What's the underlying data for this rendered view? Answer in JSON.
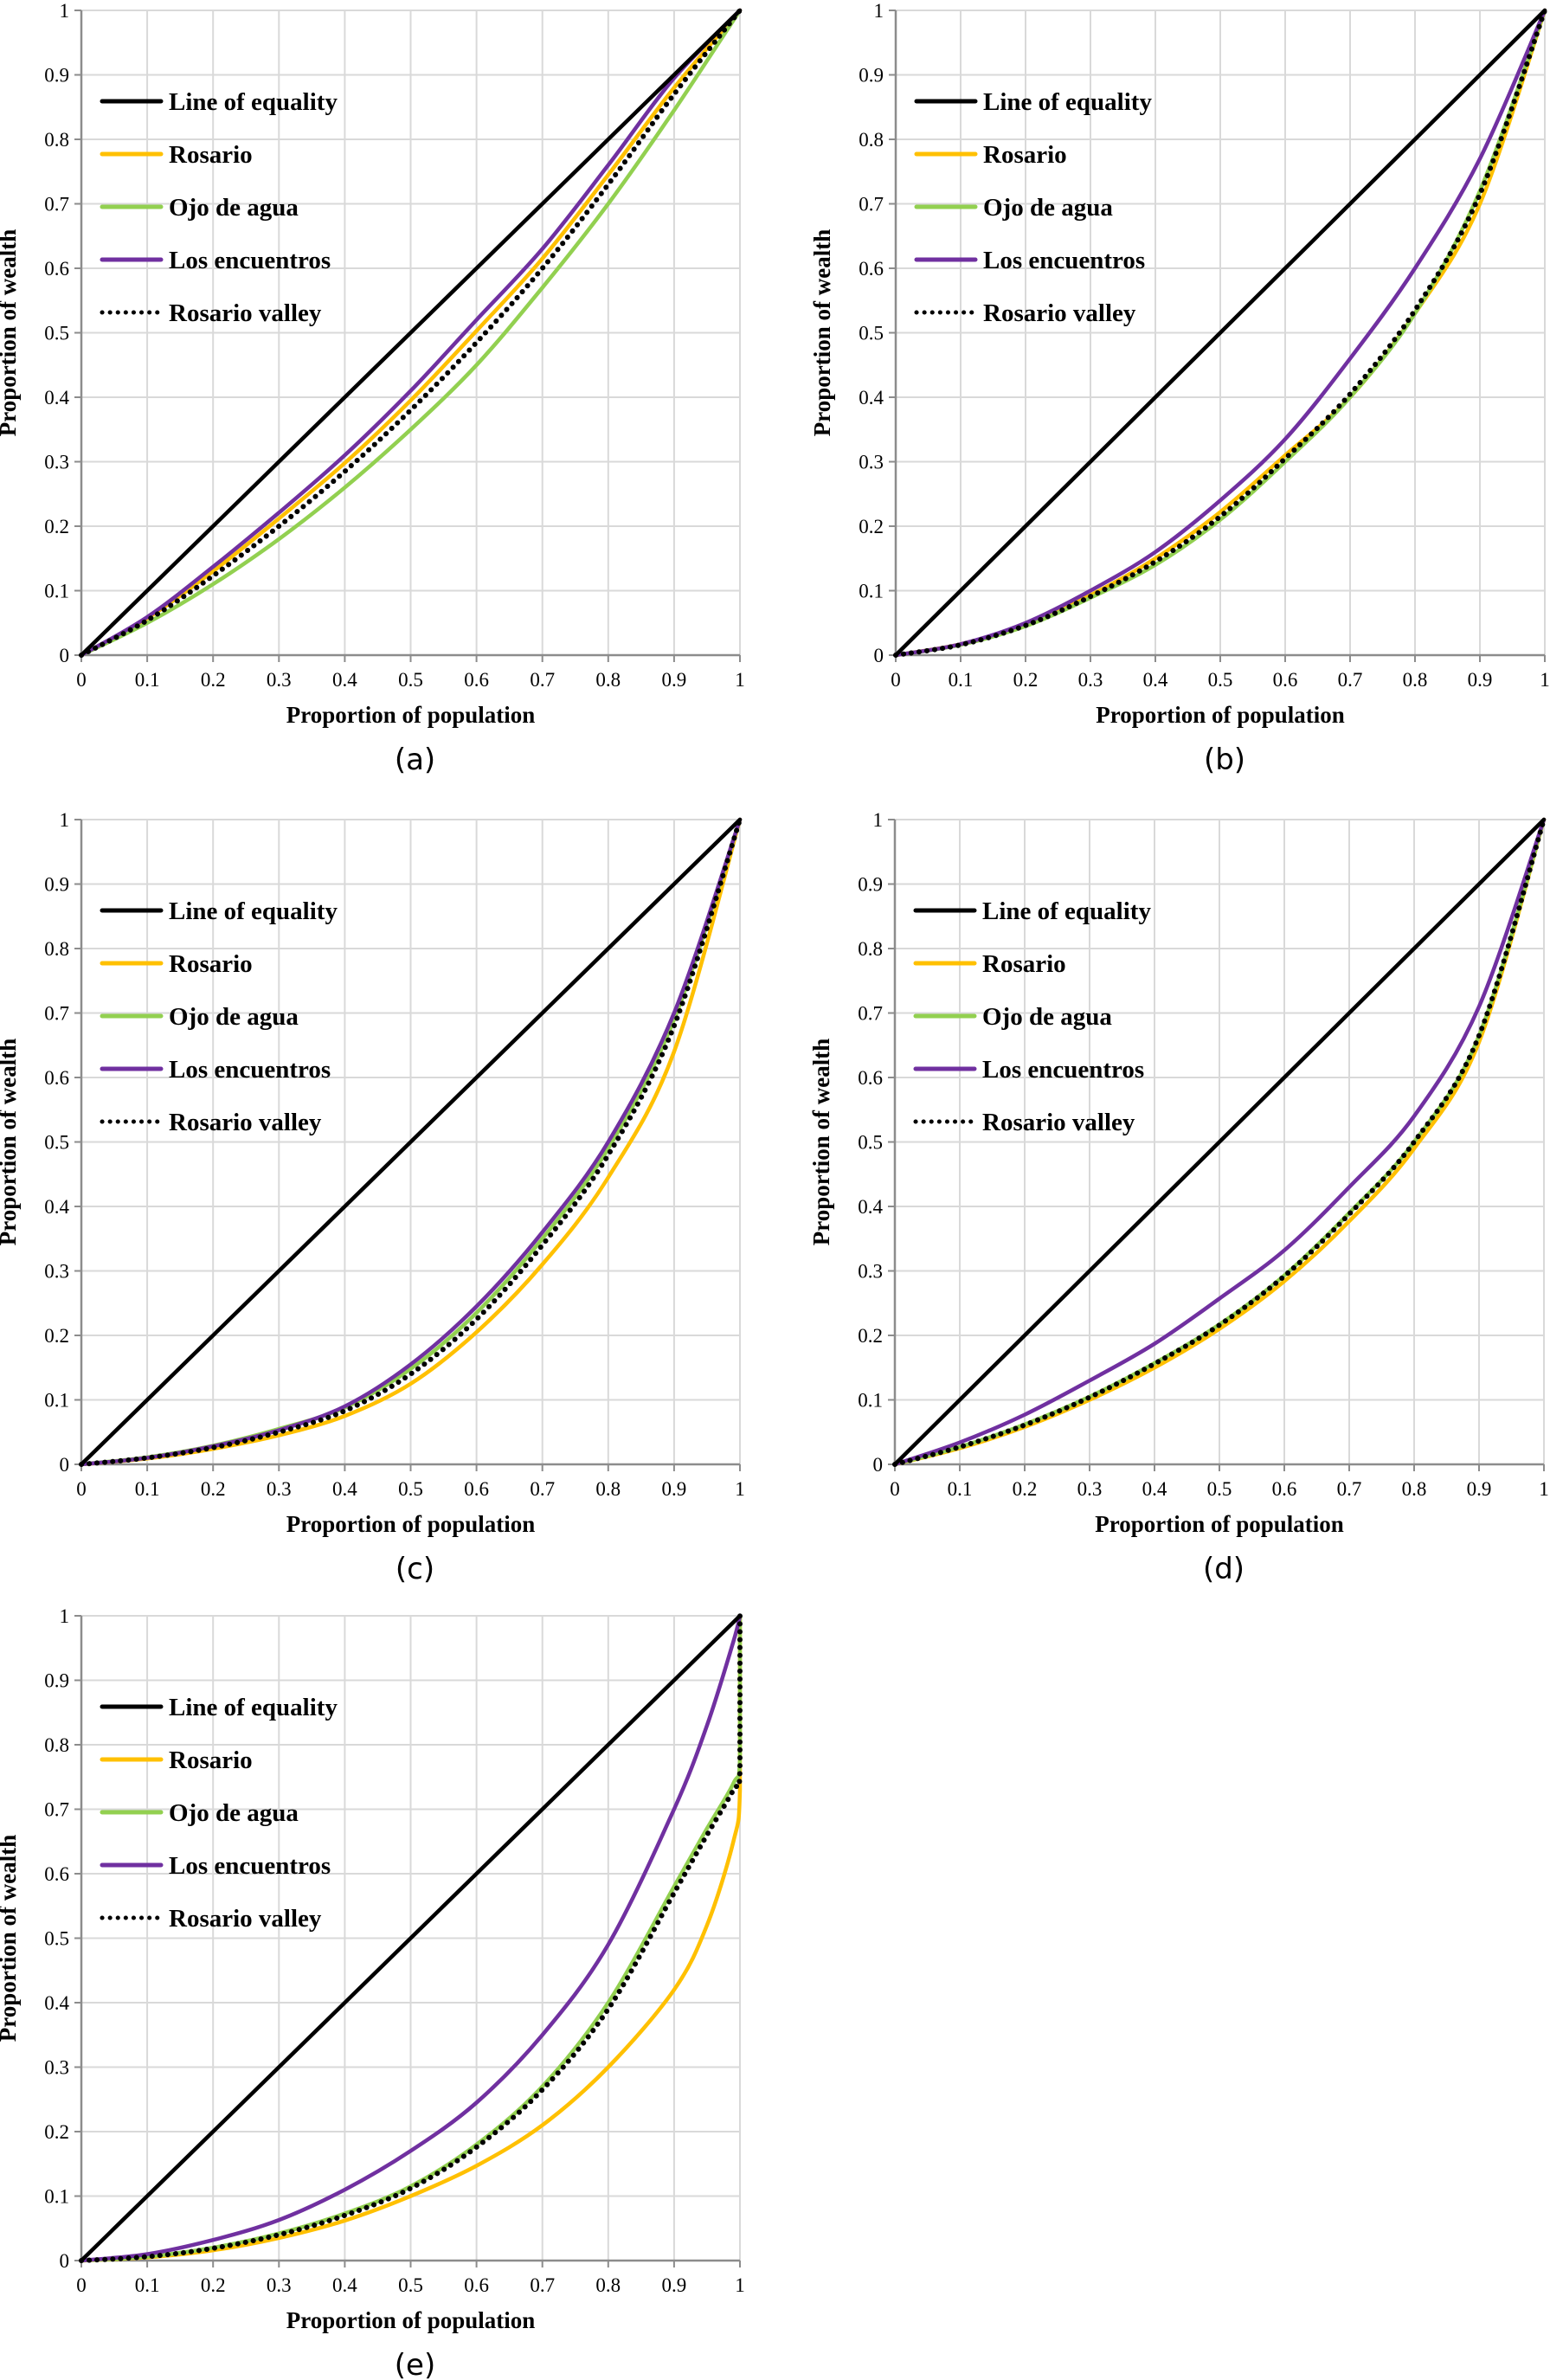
{
  "figure": {
    "panel_count": 5
  },
  "chart_data": [
    {
      "type": "line",
      "panel": "(a)",
      "title": "",
      "xlabel": "Proportion of population",
      "ylabel": "Proportion of wealth",
      "xlim": [
        0,
        1
      ],
      "ylim": [
        0,
        1
      ],
      "xticks": [
        "0",
        "0.1",
        "0.2",
        "0.3",
        "0.4",
        "0.5",
        "0.6",
        "0.7",
        "0.8",
        "0.9",
        "1"
      ],
      "yticks": [
        "0",
        "0.1",
        "0.2",
        "0.3",
        "0.4",
        "0.5",
        "0.6",
        "0.7",
        "0.8",
        "0.9",
        "1"
      ],
      "grid": true,
      "legend_position": "top-left",
      "x": [
        0,
        0.1,
        0.2,
        0.3,
        0.4,
        0.5,
        0.6,
        0.7,
        0.8,
        0.9,
        1
      ],
      "series": [
        {
          "name": "Line of equality",
          "color": "#000000",
          "style": "solid",
          "values": [
            0,
            0.1,
            0.2,
            0.3,
            0.4,
            0.5,
            0.6,
            0.7,
            0.8,
            0.9,
            1
          ]
        },
        {
          "name": "Rosario",
          "color": "#FFC000",
          "style": "solid",
          "values": [
            0,
            0.057,
            0.13,
            0.212,
            0.298,
            0.395,
            0.503,
            0.615,
            0.745,
            0.88,
            1
          ]
        },
        {
          "name": "Ojo de agua",
          "color": "#92D050",
          "style": "solid",
          "values": [
            0,
            0.05,
            0.11,
            0.18,
            0.26,
            0.35,
            0.45,
            0.57,
            0.7,
            0.845,
            1
          ]
        },
        {
          "name": "Los encuentros",
          "color": "#7030A0",
          "style": "solid",
          "values": [
            0,
            0.059,
            0.137,
            0.221,
            0.31,
            0.41,
            0.52,
            0.63,
            0.76,
            0.895,
            1
          ]
        },
        {
          "name": "Rosario valley",
          "color": "#000000",
          "style": "dotted",
          "values": [
            0,
            0.054,
            0.123,
            0.2,
            0.285,
            0.38,
            0.485,
            0.6,
            0.73,
            0.87,
            1
          ]
        }
      ]
    },
    {
      "type": "line",
      "panel": "(b)",
      "title": "",
      "xlabel": "Proportion of population",
      "ylabel": "Proportion of wealth",
      "xlim": [
        0,
        1
      ],
      "ylim": [
        0,
        1
      ],
      "xticks": [
        "0",
        "0.1",
        "0.2",
        "0.3",
        "0.4",
        "0.5",
        "0.6",
        "0.7",
        "0.8",
        "0.9",
        "1"
      ],
      "yticks": [
        "0",
        "0.1",
        "0.2",
        "0.3",
        "0.4",
        "0.5",
        "0.6",
        "0.7",
        "0.8",
        "0.9",
        "1"
      ],
      "grid": true,
      "legend_position": "top-left",
      "x": [
        0,
        0.1,
        0.2,
        0.3,
        0.4,
        0.5,
        0.6,
        0.7,
        0.8,
        0.9,
        1
      ],
      "series": [
        {
          "name": "Line of equality",
          "color": "#000000",
          "style": "solid",
          "values": [
            0,
            0.1,
            0.2,
            0.3,
            0.4,
            0.5,
            0.6,
            0.7,
            0.8,
            0.9,
            1
          ]
        },
        {
          "name": "Rosario",
          "color": "#FFC000",
          "style": "solid",
          "values": [
            0,
            0.017,
            0.047,
            0.093,
            0.15,
            0.222,
            0.31,
            0.4,
            0.53,
            0.7,
            1
          ]
        },
        {
          "name": "Ojo de agua",
          "color": "#92D050",
          "style": "solid",
          "values": [
            0,
            0.016,
            0.045,
            0.089,
            0.14,
            0.21,
            0.3,
            0.4,
            0.53,
            0.72,
            1
          ]
        },
        {
          "name": "Los encuentros",
          "color": "#7030A0",
          "style": "solid",
          "values": [
            0,
            0.017,
            0.05,
            0.1,
            0.16,
            0.24,
            0.335,
            0.46,
            0.6,
            0.77,
            1
          ]
        },
        {
          "name": "Rosario valley",
          "color": "#000000",
          "style": "dotted",
          "values": [
            0,
            0.016,
            0.046,
            0.091,
            0.145,
            0.215,
            0.305,
            0.405,
            0.535,
            0.715,
            1
          ]
        }
      ]
    },
    {
      "type": "line",
      "panel": "(c)",
      "title": "",
      "xlabel": "Proportion of population",
      "ylabel": "Proportion of wealth",
      "xlim": [
        0,
        1
      ],
      "ylim": [
        0,
        1
      ],
      "xticks": [
        "0",
        "0.1",
        "0.2",
        "0.3",
        "0.4",
        "0.5",
        "0.6",
        "0.7",
        "0.8",
        "0.9",
        "1"
      ],
      "yticks": [
        "0",
        "0.1",
        "0.2",
        "0.3",
        "0.4",
        "0.5",
        "0.6",
        "0.7",
        "0.8",
        "0.9",
        "1"
      ],
      "grid": true,
      "legend_position": "top-left",
      "x": [
        0,
        0.1,
        0.2,
        0.3,
        0.4,
        0.5,
        0.6,
        0.7,
        0.8,
        0.9,
        1
      ],
      "series": [
        {
          "name": "Line of equality",
          "color": "#000000",
          "style": "solid",
          "values": [
            0,
            0.1,
            0.2,
            0.3,
            0.4,
            0.5,
            0.6,
            0.7,
            0.8,
            0.9,
            1
          ]
        },
        {
          "name": "Rosario",
          "color": "#FFC000",
          "style": "solid",
          "values": [
            0,
            0.009,
            0.024,
            0.045,
            0.075,
            0.125,
            0.205,
            0.31,
            0.445,
            0.64,
            1
          ]
        },
        {
          "name": "Ojo de agua",
          "color": "#92D050",
          "style": "solid",
          "values": [
            0,
            0.011,
            0.029,
            0.055,
            0.088,
            0.148,
            0.235,
            0.35,
            0.49,
            0.69,
            1
          ]
        },
        {
          "name": "Los encuentros",
          "color": "#7030A0",
          "style": "solid",
          "values": [
            0,
            0.01,
            0.028,
            0.053,
            0.09,
            0.155,
            0.245,
            0.36,
            0.5,
            0.7,
            1
          ]
        },
        {
          "name": "Rosario valley",
          "color": "#000000",
          "style": "dotted",
          "values": [
            0,
            0.01,
            0.026,
            0.05,
            0.083,
            0.14,
            0.225,
            0.34,
            0.48,
            0.68,
            1
          ]
        }
      ]
    },
    {
      "type": "line",
      "panel": "(d)",
      "title": "",
      "xlabel": "Proportion of population",
      "ylabel": "Proportion of wealth",
      "xlim": [
        0,
        1
      ],
      "ylim": [
        0,
        1
      ],
      "xticks": [
        "0",
        "0.1",
        "0.2",
        "0.3",
        "0.4",
        "0.5",
        "0.6",
        "0.7",
        "0.8",
        "0.9",
        "1"
      ],
      "yticks": [
        "0",
        "0.1",
        "0.2",
        "0.3",
        "0.4",
        "0.5",
        "0.6",
        "0.7",
        "0.8",
        "0.9",
        "1"
      ],
      "grid": true,
      "legend_position": "top-left",
      "x": [
        0,
        0.1,
        0.2,
        0.3,
        0.4,
        0.5,
        0.6,
        0.7,
        0.8,
        0.9,
        1
      ],
      "series": [
        {
          "name": "Line of equality",
          "color": "#000000",
          "style": "solid",
          "values": [
            0,
            0.1,
            0.2,
            0.3,
            0.4,
            0.5,
            0.6,
            0.7,
            0.8,
            0.9,
            1
          ]
        },
        {
          "name": "Rosario",
          "color": "#FFC000",
          "style": "solid",
          "values": [
            0,
            0.025,
            0.058,
            0.1,
            0.15,
            0.21,
            0.284,
            0.377,
            0.49,
            0.655,
            1
          ]
        },
        {
          "name": "Ojo de agua",
          "color": "#92D050",
          "style": "solid",
          "values": [
            0,
            0.027,
            0.062,
            0.105,
            0.157,
            0.217,
            0.293,
            0.39,
            0.5,
            0.665,
            1
          ]
        },
        {
          "name": "Los encuentros",
          "color": "#7030A0",
          "style": "solid",
          "values": [
            0,
            0.034,
            0.077,
            0.13,
            0.187,
            0.257,
            0.332,
            0.43,
            0.54,
            0.71,
            1
          ]
        },
        {
          "name": "Rosario valley",
          "color": "#000000",
          "style": "dotted",
          "values": [
            0,
            0.027,
            0.061,
            0.104,
            0.156,
            0.216,
            0.292,
            0.388,
            0.5,
            0.665,
            1
          ]
        }
      ]
    },
    {
      "type": "line",
      "panel": "(e)",
      "title": "",
      "xlabel": "Proportion of population",
      "ylabel": "Proportion of wealth",
      "xlim": [
        0,
        1
      ],
      "ylim": [
        0,
        1
      ],
      "xticks": [
        "0",
        "0.1",
        "0.2",
        "0.3",
        "0.4",
        "0.5",
        "0.6",
        "0.7",
        "0.8",
        "0.9",
        "1"
      ],
      "yticks": [
        "0",
        "0.1",
        "0.2",
        "0.3",
        "0.4",
        "0.5",
        "0.6",
        "0.7",
        "0.8",
        "0.9",
        "1"
      ],
      "grid": true,
      "legend_position": "top-left",
      "x": [
        0,
        0.1,
        0.2,
        0.3,
        0.4,
        0.5,
        0.6,
        0.7,
        0.8,
        0.9,
        0.95,
        0.99,
        1,
        1
      ],
      "series": [
        {
          "name": "Line of equality",
          "color": "#000000",
          "style": "solid",
          "values": [
            0,
            0.1,
            0.2,
            0.3,
            0.4,
            0.5,
            0.6,
            0.7,
            0.8,
            0.9,
            0.95,
            0.99,
            1,
            1
          ]
        },
        {
          "name": "Rosario",
          "color": "#FFC000",
          "style": "solid",
          "values": [
            0,
            0.005,
            0.016,
            0.035,
            0.062,
            0.1,
            0.147,
            0.21,
            0.3,
            0.42,
            0.52,
            0.65,
            0.73,
            1
          ]
        },
        {
          "name": "Ojo de agua",
          "color": "#92D050",
          "style": "solid",
          "values": [
            0,
            0.006,
            0.02,
            0.042,
            0.073,
            0.115,
            0.18,
            0.27,
            0.4,
            0.58,
            0.67,
            0.74,
            0.78,
            1
          ]
        },
        {
          "name": "Los encuentros",
          "color": "#7030A0",
          "style": "solid",
          "values": [
            0,
            0.01,
            0.032,
            0.063,
            0.11,
            0.17,
            0.245,
            0.35,
            0.49,
            0.7,
            0.83,
            0.96,
            1,
            1
          ]
        },
        {
          "name": "Rosario valley",
          "color": "#000000",
          "style": "dotted",
          "values": [
            0,
            0.006,
            0.019,
            0.04,
            0.07,
            0.112,
            0.176,
            0.265,
            0.39,
            0.57,
            0.66,
            0.73,
            0.76,
            1
          ]
        }
      ]
    }
  ]
}
